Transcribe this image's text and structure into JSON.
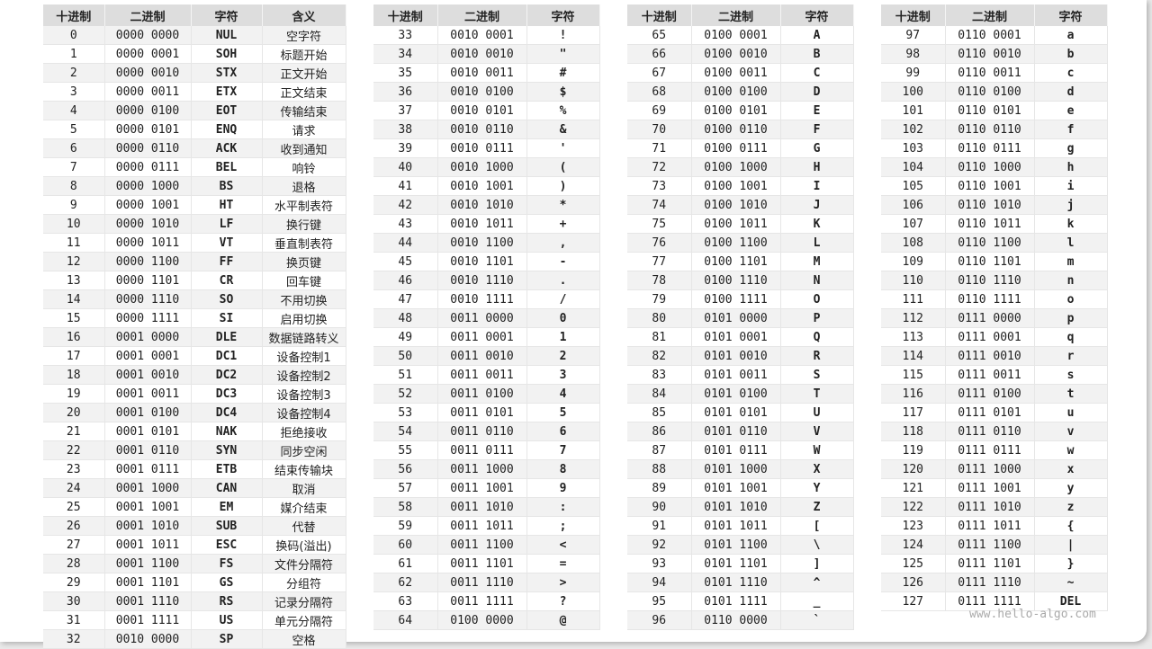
{
  "headers_full": [
    "十进制",
    "二进制",
    "字符",
    "含义"
  ],
  "headers": [
    "十进制",
    "二进制",
    "字符"
  ],
  "watermark": "www.hello-algo.com",
  "tables": [
    {
      "rows": [
        [
          "0",
          "0000 0000",
          "NUL",
          "空字符"
        ],
        [
          "1",
          "0000 0001",
          "SOH",
          "标题开始"
        ],
        [
          "2",
          "0000 0010",
          "STX",
          "正文开始"
        ],
        [
          "3",
          "0000 0011",
          "ETX",
          "正文结束"
        ],
        [
          "4",
          "0000 0100",
          "EOT",
          "传输结束"
        ],
        [
          "5",
          "0000 0101",
          "ENQ",
          "请求"
        ],
        [
          "6",
          "0000 0110",
          "ACK",
          "收到通知"
        ],
        [
          "7",
          "0000 0111",
          "BEL",
          "响铃"
        ],
        [
          "8",
          "0000 1000",
          "BS",
          "退格"
        ],
        [
          "9",
          "0000 1001",
          "HT",
          "水平制表符"
        ],
        [
          "10",
          "0000 1010",
          "LF",
          "换行键"
        ],
        [
          "11",
          "0000 1011",
          "VT",
          "垂直制表符"
        ],
        [
          "12",
          "0000 1100",
          "FF",
          "换页键"
        ],
        [
          "13",
          "0000 1101",
          "CR",
          "回车键"
        ],
        [
          "14",
          "0000 1110",
          "SO",
          "不用切换"
        ],
        [
          "15",
          "0000 1111",
          "SI",
          "启用切换"
        ],
        [
          "16",
          "0001 0000",
          "DLE",
          "数据链路转义"
        ],
        [
          "17",
          "0001 0001",
          "DC1",
          "设备控制1"
        ],
        [
          "18",
          "0001 0010",
          "DC2",
          "设备控制2"
        ],
        [
          "19",
          "0001 0011",
          "DC3",
          "设备控制3"
        ],
        [
          "20",
          "0001 0100",
          "DC4",
          "设备控制4"
        ],
        [
          "21",
          "0001 0101",
          "NAK",
          "拒绝接收"
        ],
        [
          "22",
          "0001 0110",
          "SYN",
          "同步空闲"
        ],
        [
          "23",
          "0001 0111",
          "ETB",
          "结束传输块"
        ],
        [
          "24",
          "0001 1000",
          "CAN",
          "取消"
        ],
        [
          "25",
          "0001 1001",
          "EM",
          "媒介结束"
        ],
        [
          "26",
          "0001 1010",
          "SUB",
          "代替"
        ],
        [
          "27",
          "0001 1011",
          "ESC",
          "换码(溢出)"
        ],
        [
          "28",
          "0001 1100",
          "FS",
          "文件分隔符"
        ],
        [
          "29",
          "0001 1101",
          "GS",
          "分组符"
        ],
        [
          "30",
          "0001 1110",
          "RS",
          "记录分隔符"
        ],
        [
          "31",
          "0001 1111",
          "US",
          "单元分隔符"
        ],
        [
          "32",
          "0010 0000",
          "SP",
          "空格"
        ]
      ]
    },
    {
      "rows": [
        [
          "33",
          "0010 0001",
          "!"
        ],
        [
          "34",
          "0010 0010",
          "\""
        ],
        [
          "35",
          "0010 0011",
          "#"
        ],
        [
          "36",
          "0010 0100",
          "$"
        ],
        [
          "37",
          "0010 0101",
          "%"
        ],
        [
          "38",
          "0010 0110",
          "&"
        ],
        [
          "39",
          "0010 0111",
          "'"
        ],
        [
          "40",
          "0010 1000",
          "("
        ],
        [
          "41",
          "0010 1001",
          ")"
        ],
        [
          "42",
          "0010 1010",
          "*"
        ],
        [
          "43",
          "0010 1011",
          "+"
        ],
        [
          "44",
          "0010 1100",
          ","
        ],
        [
          "45",
          "0010 1101",
          "-"
        ],
        [
          "46",
          "0010 1110",
          "."
        ],
        [
          "47",
          "0010 1111",
          "/"
        ],
        [
          "48",
          "0011 0000",
          "0"
        ],
        [
          "49",
          "0011 0001",
          "1"
        ],
        [
          "50",
          "0011 0010",
          "2"
        ],
        [
          "51",
          "0011 0011",
          "3"
        ],
        [
          "52",
          "0011 0100",
          "4"
        ],
        [
          "53",
          "0011 0101",
          "5"
        ],
        [
          "54",
          "0011 0110",
          "6"
        ],
        [
          "55",
          "0011 0111",
          "7"
        ],
        [
          "56",
          "0011 1000",
          "8"
        ],
        [
          "57",
          "0011 1001",
          "9"
        ],
        [
          "58",
          "0011 1010",
          ":"
        ],
        [
          "59",
          "0011 1011",
          ";"
        ],
        [
          "60",
          "0011 1100",
          "<"
        ],
        [
          "61",
          "0011 1101",
          "="
        ],
        [
          "62",
          "0011 1110",
          ">"
        ],
        [
          "63",
          "0011 1111",
          "?"
        ],
        [
          "64",
          "0100 0000",
          "@"
        ]
      ]
    },
    {
      "rows": [
        [
          "65",
          "0100 0001",
          "A"
        ],
        [
          "66",
          "0100 0010",
          "B"
        ],
        [
          "67",
          "0100 0011",
          "C"
        ],
        [
          "68",
          "0100 0100",
          "D"
        ],
        [
          "69",
          "0100 0101",
          "E"
        ],
        [
          "70",
          "0100 0110",
          "F"
        ],
        [
          "71",
          "0100 0111",
          "G"
        ],
        [
          "72",
          "0100 1000",
          "H"
        ],
        [
          "73",
          "0100 1001",
          "I"
        ],
        [
          "74",
          "0100 1010",
          "J"
        ],
        [
          "75",
          "0100 1011",
          "K"
        ],
        [
          "76",
          "0100 1100",
          "L"
        ],
        [
          "77",
          "0100 1101",
          "M"
        ],
        [
          "78",
          "0100 1110",
          "N"
        ],
        [
          "79",
          "0100 1111",
          "O"
        ],
        [
          "80",
          "0101 0000",
          "P"
        ],
        [
          "81",
          "0101 0001",
          "Q"
        ],
        [
          "82",
          "0101 0010",
          "R"
        ],
        [
          "83",
          "0101 0011",
          "S"
        ],
        [
          "84",
          "0101 0100",
          "T"
        ],
        [
          "85",
          "0101 0101",
          "U"
        ],
        [
          "86",
          "0101 0110",
          "V"
        ],
        [
          "87",
          "0101 0111",
          "W"
        ],
        [
          "88",
          "0101 1000",
          "X"
        ],
        [
          "89",
          "0101 1001",
          "Y"
        ],
        [
          "90",
          "0101 1010",
          "Z"
        ],
        [
          "91",
          "0101 1011",
          "["
        ],
        [
          "92",
          "0101 1100",
          "\\"
        ],
        [
          "93",
          "0101 1101",
          "]"
        ],
        [
          "94",
          "0101 1110",
          "^"
        ],
        [
          "95",
          "0101 1111",
          "_"
        ],
        [
          "96",
          "0110 0000",
          "`"
        ]
      ]
    },
    {
      "rows": [
        [
          "97",
          "0110 0001",
          "a"
        ],
        [
          "98",
          "0110 0010",
          "b"
        ],
        [
          "99",
          "0110 0011",
          "c"
        ],
        [
          "100",
          "0110 0100",
          "d"
        ],
        [
          "101",
          "0110 0101",
          "e"
        ],
        [
          "102",
          "0110 0110",
          "f"
        ],
        [
          "103",
          "0110 0111",
          "g"
        ],
        [
          "104",
          "0110 1000",
          "h"
        ],
        [
          "105",
          "0110 1001",
          "i"
        ],
        [
          "106",
          "0110 1010",
          "j"
        ],
        [
          "107",
          "0110 1011",
          "k"
        ],
        [
          "108",
          "0110 1100",
          "l"
        ],
        [
          "109",
          "0110 1101",
          "m"
        ],
        [
          "110",
          "0110 1110",
          "n"
        ],
        [
          "111",
          "0110 1111",
          "o"
        ],
        [
          "112",
          "0111 0000",
          "p"
        ],
        [
          "113",
          "0111 0001",
          "q"
        ],
        [
          "114",
          "0111 0010",
          "r"
        ],
        [
          "115",
          "0111 0011",
          "s"
        ],
        [
          "116",
          "0111 0100",
          "t"
        ],
        [
          "117",
          "0111 0101",
          "u"
        ],
        [
          "118",
          "0111 0110",
          "v"
        ],
        [
          "119",
          "0111 0111",
          "w"
        ],
        [
          "120",
          "0111 1000",
          "x"
        ],
        [
          "121",
          "0111 1001",
          "y"
        ],
        [
          "122",
          "0111 1010",
          "z"
        ],
        [
          "123",
          "0111 1011",
          "{"
        ],
        [
          "124",
          "0111 1100",
          "|"
        ],
        [
          "125",
          "0111 1101",
          "}"
        ],
        [
          "126",
          "0111 1110",
          "~"
        ],
        [
          "127",
          "0111 1111",
          "DEL"
        ]
      ]
    }
  ]
}
